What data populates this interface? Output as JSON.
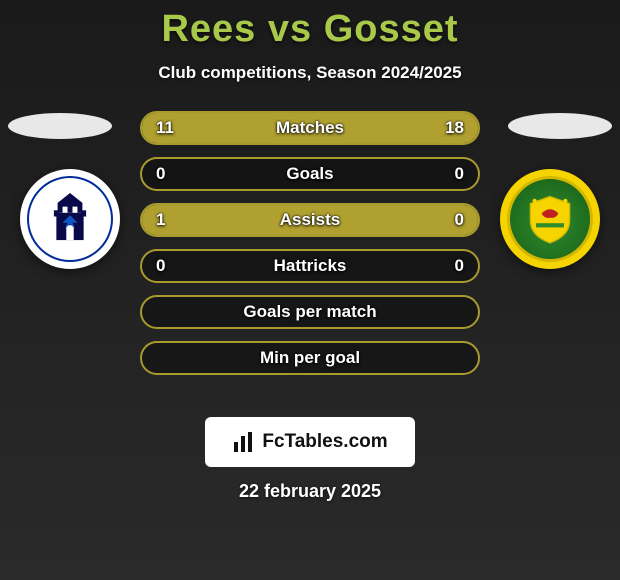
{
  "title": {
    "player1": "Rees",
    "vs": "vs",
    "player2": "Gosset",
    "color": "#a8c84a"
  },
  "subtitle": "Club competitions, Season 2024/2025",
  "accent_color": "#a89a2e",
  "fill_color": "#b0a030",
  "bg_fill": "rgba(0,0,0,0.35)",
  "bars": [
    {
      "label": "Matches",
      "left_val": "11",
      "right_val": "18",
      "left_pct": 37.9,
      "right_pct": 62.1
    },
    {
      "label": "Goals",
      "left_val": "0",
      "right_val": "0",
      "left_pct": 0,
      "right_pct": 0
    },
    {
      "label": "Assists",
      "left_val": "1",
      "right_val": "0",
      "left_pct": 100,
      "right_pct": 0
    },
    {
      "label": "Hattricks",
      "left_val": "0",
      "right_val": "0",
      "left_pct": 0,
      "right_pct": 0
    },
    {
      "label": "Goals per match",
      "left_val": "",
      "right_val": "",
      "left_pct": 0,
      "right_pct": 0
    },
    {
      "label": "Min per goal",
      "left_val": "",
      "right_val": "",
      "left_pct": 0,
      "right_pct": 0
    }
  ],
  "badge_left": {
    "outer_bg": "#ffffff",
    "ring": "#002b9a",
    "castle_fill": "#0a0a4a",
    "eagle_fill": "#1060d0"
  },
  "badge_right": {
    "outer_bg": "#f5d400",
    "ring": "#d4b800",
    "green": "#2e8b2e",
    "red": "#c02020",
    "yellow": "#f5d400"
  },
  "footer_logo_text": "FcTables.com",
  "date": "22 february 2025"
}
